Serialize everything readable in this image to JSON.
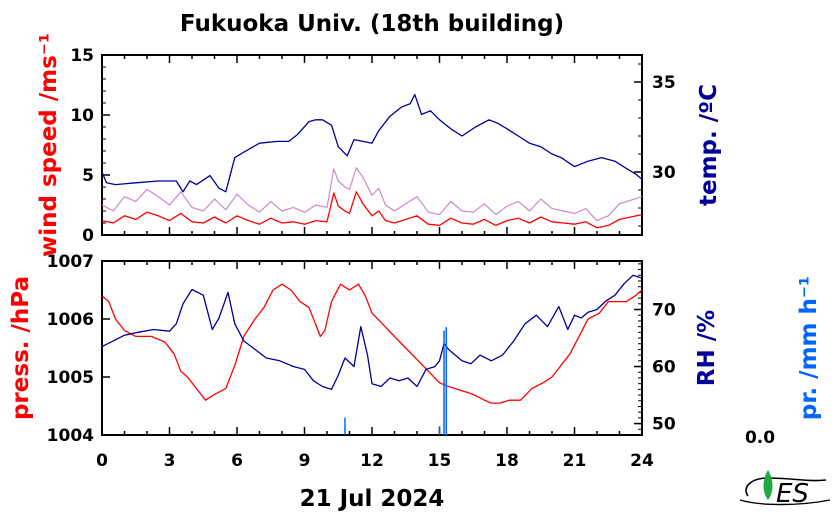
{
  "title": "Fukuoka Univ. (18th building)",
  "date_label": "21 Jul 2024",
  "precip_value": "0.0",
  "logo_text": "NES",
  "colors": {
    "red": "#ff0000",
    "navy": "#000099",
    "blue": "#0066ff",
    "mauve": "#cc88cc",
    "green": "#22aa44"
  },
  "chart_data": [
    {
      "type": "line",
      "panel": "top",
      "x_range": [
        0,
        24
      ],
      "x_ticks": [
        "0",
        "3",
        "6",
        "9",
        "12",
        "15",
        "18",
        "21",
        "24"
      ],
      "left_axis": {
        "label": "wind speed /ms⁻¹",
        "ylim": [
          0,
          15
        ],
        "ticks": [
          "0",
          "5",
          "10",
          "15"
        ],
        "color": "#ff0000"
      },
      "right_axis": {
        "label": "temp. /ºC",
        "ylim": [
          26.5,
          36.5
        ],
        "ticks": [
          "30",
          "35"
        ],
        "color": "#000099"
      },
      "series": [
        {
          "axis": "left",
          "color": "#ff0000",
          "role": "wind mean",
          "x": [
            0,
            0.5,
            1,
            1.5,
            2,
            2.5,
            3,
            3.5,
            4,
            4.5,
            5,
            5.5,
            6,
            6.5,
            7,
            7.5,
            8,
            8.5,
            9,
            9.5,
            10,
            10.3,
            10.5,
            10.8,
            11,
            11.3,
            11.6,
            12,
            12.3,
            12.6,
            13,
            13.5,
            14,
            14.5,
            15,
            15.5,
            16,
            16.5,
            17,
            17.5,
            18,
            18.5,
            19,
            19.5,
            20,
            20.5,
            21,
            21.5,
            22,
            22.5,
            23,
            23.5,
            24
          ],
          "y": [
            1.2,
            1.0,
            1.6,
            1.3,
            1.9,
            1.6,
            1.2,
            1.8,
            1.1,
            1.0,
            1.5,
            1.0,
            1.6,
            1.2,
            0.9,
            1.4,
            1.0,
            1.1,
            0.9,
            1.2,
            1.1,
            3.5,
            2.4,
            2.0,
            1.8,
            3.6,
            2.6,
            1.6,
            2.0,
            1.2,
            1.0,
            1.3,
            1.6,
            0.9,
            0.8,
            1.4,
            1.0,
            0.9,
            1.3,
            0.8,
            1.2,
            1.4,
            1.0,
            1.5,
            1.1,
            1.0,
            0.9,
            1.1,
            0.6,
            0.8,
            1.3,
            1.5,
            1.7
          ]
        },
        {
          "axis": "left",
          "color": "#cc88cc",
          "role": "wind gust",
          "x": [
            0,
            0.5,
            1,
            1.5,
            2,
            2.5,
            3,
            3.5,
            4,
            4.5,
            5,
            5.5,
            6,
            6.5,
            7,
            7.5,
            8,
            8.5,
            9,
            9.5,
            10,
            10.3,
            10.5,
            10.8,
            11,
            11.3,
            11.6,
            12,
            12.3,
            12.6,
            13,
            13.5,
            14,
            14.5,
            15,
            15.5,
            16,
            16.5,
            17,
            17.5,
            18,
            18.5,
            19,
            19.5,
            20,
            20.5,
            21,
            21.5,
            22,
            22.5,
            23,
            23.5,
            24
          ],
          "y": [
            2.5,
            2.0,
            3.2,
            2.8,
            3.8,
            3.2,
            2.5,
            3.6,
            2.3,
            2.0,
            3.0,
            2.1,
            3.4,
            2.5,
            1.9,
            2.8,
            2.0,
            2.3,
            1.9,
            2.5,
            2.3,
            5.5,
            4.5,
            4.0,
            3.8,
            5.6,
            4.8,
            3.3,
            3.9,
            2.5,
            2.0,
            2.6,
            3.2,
            1.9,
            1.7,
            2.8,
            2.0,
            1.9,
            2.6,
            1.7,
            2.4,
            2.8,
            2.0,
            3.0,
            2.2,
            2.0,
            1.8,
            2.2,
            1.2,
            1.6,
            2.6,
            2.9,
            3.2
          ]
        },
        {
          "axis": "right",
          "color": "#000099",
          "role": "temperature",
          "x": [
            0,
            0.2,
            0.6,
            1.5,
            2.5,
            3.3,
            3.6,
            3.9,
            4.2,
            4.8,
            5.2,
            5.5,
            5.9,
            6.3,
            7.0,
            7.8,
            8.3,
            8.7,
            9.2,
            9.5,
            9.8,
            10.2,
            10.5,
            10.9,
            11.2,
            11.6,
            12.0,
            12.3,
            12.8,
            13.3,
            13.7,
            13.9,
            14.2,
            14.6,
            15.0,
            15.5,
            16.0,
            16.6,
            17.2,
            17.6,
            18.0,
            18.5,
            19.0,
            19.5,
            20.0,
            20.4,
            21.0,
            21.6,
            22.2,
            22.8,
            23.3,
            23.7,
            24
          ],
          "y": [
            30.0,
            29.4,
            29.3,
            29.4,
            29.5,
            29.5,
            28.9,
            29.5,
            29.3,
            29.8,
            29.1,
            28.9,
            30.8,
            31.1,
            31.6,
            31.7,
            31.7,
            32.1,
            32.8,
            32.9,
            32.9,
            32.6,
            31.4,
            30.9,
            31.8,
            31.7,
            31.6,
            32.3,
            33.1,
            33.6,
            33.8,
            34.3,
            33.2,
            33.4,
            32.9,
            32.4,
            32.0,
            32.5,
            32.9,
            32.7,
            32.4,
            32.0,
            31.6,
            31.4,
            31.0,
            30.8,
            30.3,
            30.6,
            30.8,
            30.6,
            30.2,
            29.9,
            29.6
          ]
        }
      ]
    },
    {
      "type": "line",
      "panel": "bottom",
      "x_range": [
        0,
        24
      ],
      "x_ticks": [
        "0",
        "3",
        "6",
        "9",
        "12",
        "15",
        "18",
        "21",
        "24"
      ],
      "xlabel": "21 Jul 2024",
      "left_axis": {
        "label": "press. /hPa",
        "ylim": [
          1004,
          1007
        ],
        "ticks": [
          "1004",
          "1005",
          "1006",
          "1007"
        ],
        "color": "#ff0000"
      },
      "right_axis": {
        "label": "RH /%",
        "ylim": [
          48,
          78.5
        ],
        "ticks": [
          "50",
          "60",
          "70"
        ],
        "color": "#000099"
      },
      "precip_axis": {
        "label": "pr. /mm h⁻¹",
        "color": "#0066ff"
      },
      "series": [
        {
          "axis": "left",
          "color": "#ff0000",
          "role": "pressure",
          "x": [
            0,
            0.3,
            0.6,
            1.0,
            1.5,
            2.2,
            2.8,
            3.2,
            3.5,
            3.8,
            4.2,
            4.6,
            5.0,
            5.5,
            5.9,
            6.3,
            6.8,
            7.2,
            7.6,
            8.0,
            8.4,
            8.8,
            9.2,
            9.5,
            9.7,
            9.9,
            10.2,
            10.6,
            11.0,
            11.4,
            11.7,
            12.0,
            12.5,
            13.0,
            13.5,
            14.0,
            14.5,
            15.0,
            15.3,
            15.7,
            16.1,
            16.5,
            17.0,
            17.3,
            17.7,
            18.1,
            18.6,
            19.1,
            19.6,
            20.0,
            20.4,
            20.8,
            21.2,
            21.6,
            22.1,
            22.5,
            22.9,
            23.3,
            23.7,
            24
          ],
          "y": [
            1006.4,
            1006.3,
            1006.0,
            1005.8,
            1005.7,
            1005.7,
            1005.6,
            1005.4,
            1005.1,
            1005.0,
            1004.8,
            1004.6,
            1004.7,
            1004.8,
            1005.2,
            1005.7,
            1006.0,
            1006.2,
            1006.5,
            1006.6,
            1006.5,
            1006.3,
            1006.2,
            1005.9,
            1005.7,
            1005.8,
            1006.3,
            1006.6,
            1006.5,
            1006.6,
            1006.4,
            1006.1,
            1005.9,
            1005.7,
            1005.5,
            1005.3,
            1005.1,
            1004.9,
            1004.85,
            1004.8,
            1004.75,
            1004.7,
            1004.6,
            1004.55,
            1004.55,
            1004.6,
            1004.6,
            1004.8,
            1004.9,
            1005.0,
            1005.2,
            1005.4,
            1005.7,
            1006.0,
            1006.1,
            1006.3,
            1006.3,
            1006.3,
            1006.4,
            1006.5
          ]
        },
        {
          "axis": "right",
          "color": "#000099",
          "role": "relative humidity",
          "x": [
            0,
            0.5,
            1.0,
            1.6,
            2.3,
            3.0,
            3.3,
            3.6,
            4.0,
            4.5,
            4.9,
            5.2,
            5.6,
            5.9,
            6.3,
            6.8,
            7.3,
            7.9,
            8.5,
            9.0,
            9.4,
            9.8,
            10.2,
            10.5,
            10.8,
            11.2,
            11.5,
            11.8,
            12.0,
            12.4,
            12.8,
            13.2,
            13.6,
            14.0,
            14.4,
            14.8,
            15.0,
            15.2,
            15.4,
            15.7,
            16.0,
            16.4,
            16.8,
            17.3,
            17.8,
            18.3,
            18.8,
            19.3,
            19.8,
            20.3,
            20.7,
            21.0,
            21.3,
            21.6,
            22.0,
            22.4,
            22.8,
            23.2,
            23.6,
            24
          ],
          "y": [
            63.5,
            64.5,
            65.5,
            66.0,
            66.5,
            66.2,
            67.5,
            71.0,
            73.5,
            72.5,
            66.5,
            68.5,
            73.0,
            67.5,
            64.5,
            63.0,
            61.5,
            61.0,
            60.0,
            59.5,
            57.5,
            56.5,
            56.0,
            58.5,
            61.5,
            60.0,
            67.0,
            62.0,
            57.0,
            56.5,
            58.0,
            57.5,
            58.0,
            56.5,
            59.5,
            60.0,
            61.0,
            64.0,
            63.0,
            62.0,
            61.0,
            60.5,
            62.0,
            61.0,
            62.0,
            64.5,
            67.5,
            69.0,
            67.0,
            70.5,
            66.5,
            69.0,
            68.5,
            69.5,
            70.0,
            71.5,
            72.5,
            74.5,
            76.0,
            75.5
          ]
        }
      ],
      "precipitation": {
        "color": "#0066ff",
        "x": [
          10.8,
          15.0,
          15.2,
          15.3
        ],
        "y_fraction": [
          0.1,
          0.05,
          0.6,
          0.62
        ]
      }
    }
  ]
}
